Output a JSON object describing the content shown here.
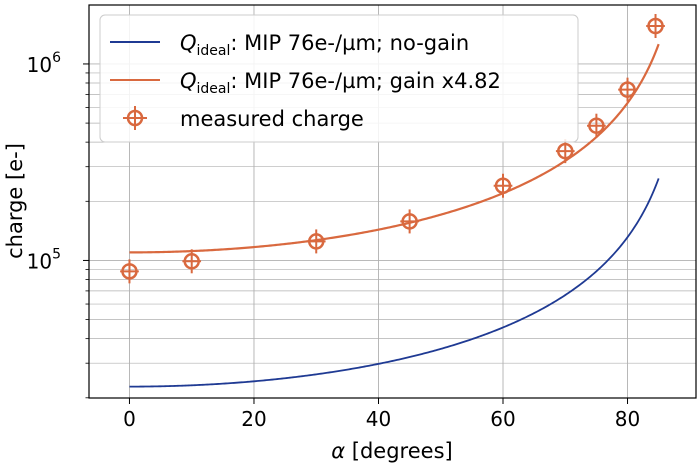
{
  "chart_data": {
    "type": "line",
    "title": "",
    "xlabel": "α [degrees]",
    "ylabel": "charge [e-]",
    "xlim": [
      -6.5,
      91
    ],
    "ylim_log10": [
      4.3,
      6.3
    ],
    "xticks": [
      0,
      20,
      40,
      60,
      80
    ],
    "yticks": [
      {
        "value": 100000,
        "label": "10",
        "exp": "5"
      },
      {
        "value": 1000000,
        "label": "10",
        "exp": "6"
      }
    ],
    "grid": true,
    "log_y": true,
    "legend_position": "upper-left",
    "series": [
      {
        "name": "Q_ideal: MIP 76e-/µm; no-gain",
        "label_main": "Q",
        "label_sub": "ideal",
        "label_rest": ": MIP 76e-/µm; no-gain",
        "kind": "line",
        "color": "#1f3a93",
        "q0": 22800,
        "x_range": [
          0,
          85
        ]
      },
      {
        "name": "Q_ideal: MIP 76e-/µm; gain x4.82",
        "label_main": "Q",
        "label_sub": "ideal",
        "label_rest": ": MIP 76e-/µm; gain x4.82",
        "kind": "line",
        "color": "#d9693f",
        "q0": 109900,
        "x_range": [
          0,
          85
        ]
      },
      {
        "name": "measured charge",
        "kind": "points",
        "color": "#d9693f",
        "x": [
          0,
          10,
          30,
          45,
          60,
          70,
          75,
          80,
          84.5
        ],
        "y": [
          88000,
          99000,
          125000,
          158000,
          240000,
          360000,
          485000,
          740000,
          1560000
        ],
        "xerr": 1.5
      }
    ]
  }
}
